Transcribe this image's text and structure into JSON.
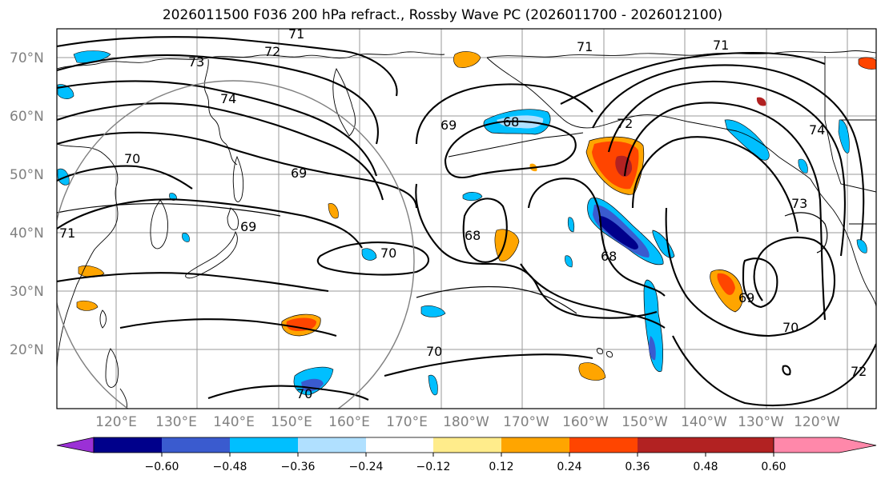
{
  "title": "2026011500 F036 200 hPa refract., Rossby Wave PC (2026011700 - 2026012100)",
  "lat_labels": [
    "70°N",
    "60°N",
    "50°N",
    "40°N",
    "30°N",
    "20°N"
  ],
  "lon_labels": [
    "120°E",
    "130°E",
    "140°E",
    "150°E",
    "160°E",
    "170°E",
    "180°W",
    "170°W",
    "160°W",
    "150°W",
    "140°W",
    "130°W",
    "120°W"
  ],
  "colorbar": {
    "colors": [
      "#9b30d6",
      "#00008b",
      "#3a5bcf",
      "#00bfff",
      "#b0e0ff",
      "#ffffff",
      "#ffec8b",
      "#ffa500",
      "#ff4500",
      "#b22222",
      "#ff88aa"
    ],
    "ticks": [
      "−0.60",
      "−0.48",
      "−0.36",
      "−0.24",
      "−0.12",
      "0.12",
      "0.24",
      "0.36",
      "0.48",
      "0.60"
    ]
  },
  "contour_labels": {
    "c71a": "71",
    "c72": "72",
    "c73": "73",
    "c74": "74",
    "c70a": "70",
    "c69a": "69",
    "c71b": "71",
    "c69b": "69",
    "c70b": "70",
    "c69c": "69",
    "c68a": "68",
    "c71c": "71",
    "c72b": "72",
    "c71d": "71",
    "c74b": "74",
    "c73b": "73",
    "c68b": "68",
    "c68c": "68",
    "c69d": "69",
    "c70c": "70",
    "c70d": "70",
    "c70e": "70",
    "c72c": "72"
  }
}
